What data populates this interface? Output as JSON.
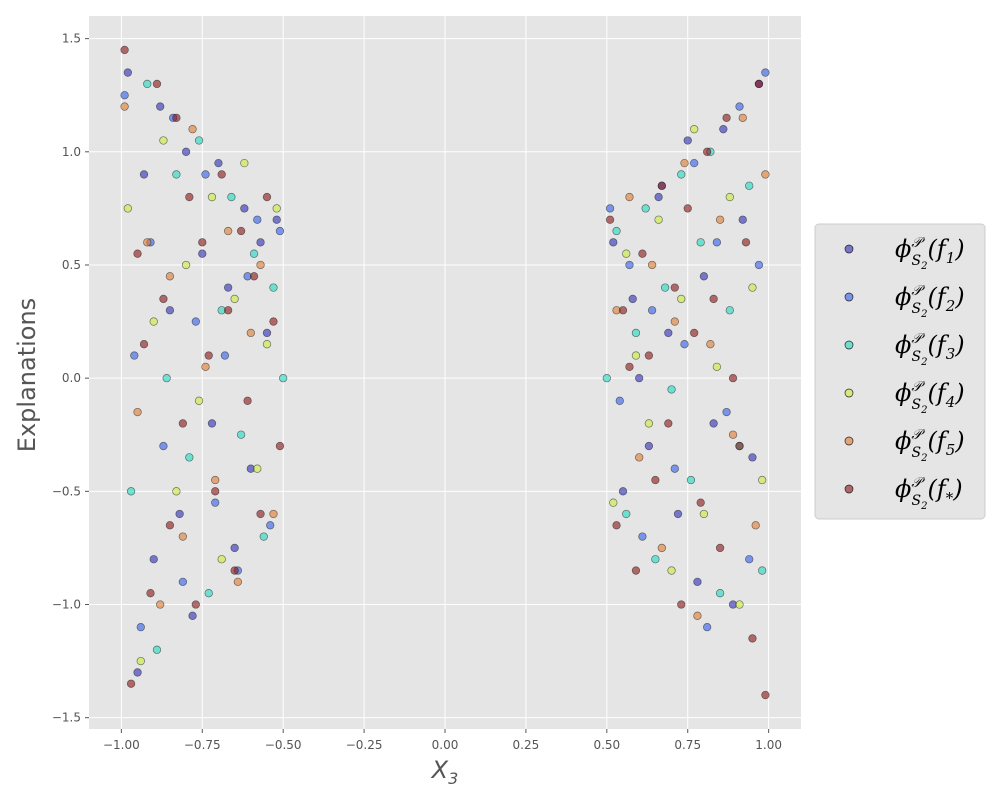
{
  "chart_data": {
    "type": "scatter",
    "xlabel": "X3",
    "ylabel": "Explanations",
    "xlim": [
      -1.1,
      1.1
    ],
    "ylim": [
      -1.55,
      1.6
    ],
    "x_ticks": [
      -1.0,
      -0.75,
      -0.5,
      -0.25,
      0.0,
      0.25,
      0.5,
      0.75,
      1.0
    ],
    "x_tick_labels": [
      "−1.00",
      "−0.75",
      "−0.50",
      "−0.25",
      "0.00",
      "0.25",
      "0.50",
      "0.75",
      "1.00"
    ],
    "y_ticks": [
      -1.5,
      -1.0,
      -0.5,
      0.0,
      0.5,
      1.0,
      1.5
    ],
    "y_tick_labels": [
      "−1.5",
      "−1.0",
      "−0.5",
      "0.0",
      "0.5",
      "1.0",
      "1.5"
    ],
    "grid": true,
    "legend_position": "right",
    "point_density_note": "points lie only for |X3| between 0.5 and 1.0",
    "series": [
      {
        "name": "ϕ^P_{S2}(f1)",
        "color": "#2a2ab8",
        "x": [
          -0.98,
          -0.95,
          -0.93,
          -0.9,
          -0.88,
          -0.85,
          -0.82,
          -0.8,
          -0.78,
          -0.75,
          -0.72,
          -0.7,
          -0.67,
          -0.65,
          -0.62,
          -0.6,
          -0.57,
          -0.55,
          -0.52,
          0.52,
          0.55,
          0.58,
          0.6,
          0.63,
          0.66,
          0.69,
          0.72,
          0.75,
          0.78,
          0.8,
          0.83,
          0.86,
          0.89,
          0.92,
          0.95,
          0.97
        ],
        "y": [
          1.35,
          -1.3,
          0.9,
          -0.8,
          1.2,
          0.3,
          -0.6,
          1.0,
          -1.05,
          0.55,
          -0.2,
          0.95,
          0.4,
          -0.75,
          0.75,
          -0.4,
          0.6,
          0.2,
          0.7,
          0.6,
          -0.5,
          0.35,
          0.0,
          -0.3,
          0.8,
          0.2,
          -0.6,
          1.05,
          -0.9,
          0.45,
          -0.2,
          1.1,
          -1.0,
          0.7,
          -0.35,
          1.3
        ]
      },
      {
        "name": "ϕ^P_{S2}(f2)",
        "color": "#2f5be8",
        "x": [
          -0.99,
          -0.96,
          -0.94,
          -0.91,
          -0.87,
          -0.84,
          -0.81,
          -0.77,
          -0.74,
          -0.71,
          -0.68,
          -0.64,
          -0.61,
          -0.58,
          -0.54,
          -0.51,
          0.51,
          0.54,
          0.57,
          0.61,
          0.64,
          0.67,
          0.71,
          0.74,
          0.77,
          0.81,
          0.84,
          0.87,
          0.91,
          0.94,
          0.97,
          0.99
        ],
        "y": [
          1.25,
          0.1,
          -1.1,
          0.6,
          -0.3,
          1.15,
          -0.9,
          0.25,
          0.9,
          -0.55,
          0.1,
          -0.85,
          0.45,
          0.7,
          -0.65,
          0.65,
          0.75,
          -0.1,
          0.5,
          -0.7,
          0.3,
          0.85,
          -0.4,
          0.15,
          0.95,
          -1.1,
          0.6,
          -0.15,
          1.2,
          -0.8,
          0.5,
          1.35
        ]
      },
      {
        "name": "ϕ^P_{S2}(f3)",
        "color": "#1fd8c0",
        "x": [
          -0.97,
          -0.92,
          -0.89,
          -0.86,
          -0.83,
          -0.79,
          -0.76,
          -0.73,
          -0.69,
          -0.66,
          -0.63,
          -0.59,
          -0.56,
          -0.53,
          -0.5,
          0.5,
          0.53,
          0.56,
          0.59,
          0.62,
          0.65,
          0.68,
          0.7,
          0.73,
          0.76,
          0.79,
          0.82,
          0.85,
          0.88,
          0.91,
          0.94,
          0.98
        ],
        "y": [
          -0.5,
          1.3,
          -1.2,
          0.0,
          0.9,
          -0.35,
          1.05,
          -0.95,
          0.3,
          0.8,
          -0.25,
          0.55,
          -0.7,
          0.4,
          0.0,
          0.0,
          0.65,
          -0.6,
          0.2,
          0.75,
          -0.8,
          0.4,
          -0.05,
          0.9,
          -0.45,
          0.6,
          1.0,
          -0.95,
          0.3,
          -0.3,
          0.85,
          -0.85
        ]
      },
      {
        "name": "ϕ^P_{S2}(f4)",
        "color": "#c8ec38",
        "x": [
          -0.98,
          -0.94,
          -0.9,
          -0.87,
          -0.83,
          -0.8,
          -0.76,
          -0.72,
          -0.69,
          -0.65,
          -0.62,
          -0.58,
          -0.55,
          -0.52,
          0.52,
          0.56,
          0.59,
          0.63,
          0.66,
          0.7,
          0.73,
          0.77,
          0.8,
          0.84,
          0.88,
          0.91,
          0.95,
          0.98
        ],
        "y": [
          0.75,
          -1.25,
          0.25,
          1.05,
          -0.5,
          0.5,
          -0.1,
          0.8,
          -0.8,
          0.35,
          0.95,
          -0.4,
          0.15,
          0.75,
          -0.55,
          0.55,
          0.1,
          -0.2,
          0.7,
          -0.85,
          0.35,
          1.1,
          -0.6,
          0.05,
          0.8,
          -1.0,
          0.4,
          -0.45
        ]
      },
      {
        "name": "ϕ^P_{S2}(f5)",
        "color": "#e07a2e",
        "x": [
          -0.99,
          -0.95,
          -0.92,
          -0.88,
          -0.85,
          -0.81,
          -0.78,
          -0.74,
          -0.71,
          -0.67,
          -0.64,
          -0.6,
          -0.57,
          -0.53,
          0.53,
          0.57,
          0.6,
          0.64,
          0.67,
          0.71,
          0.74,
          0.78,
          0.82,
          0.85,
          0.89,
          0.92,
          0.96,
          0.99
        ],
        "y": [
          1.2,
          -0.15,
          0.6,
          -1.0,
          0.45,
          -0.7,
          1.1,
          0.05,
          -0.45,
          0.65,
          -0.9,
          0.2,
          0.5,
          -0.6,
          0.3,
          0.8,
          -0.35,
          0.5,
          -0.75,
          0.25,
          0.95,
          -1.05,
          0.15,
          0.7,
          -0.25,
          1.15,
          -0.65,
          0.9
        ]
      },
      {
        "name": "ϕ^P_{S2}(f*)",
        "color": "#8b1010",
        "x": [
          -0.99,
          -0.97,
          -0.95,
          -0.93,
          -0.91,
          -0.89,
          -0.87,
          -0.85,
          -0.83,
          -0.81,
          -0.79,
          -0.77,
          -0.75,
          -0.73,
          -0.71,
          -0.69,
          -0.67,
          -0.65,
          -0.63,
          -0.61,
          -0.59,
          -0.57,
          -0.55,
          -0.53,
          -0.51,
          0.51,
          0.53,
          0.55,
          0.57,
          0.59,
          0.61,
          0.63,
          0.65,
          0.67,
          0.69,
          0.71,
          0.73,
          0.75,
          0.77,
          0.79,
          0.81,
          0.83,
          0.85,
          0.87,
          0.89,
          0.91,
          0.93,
          0.95,
          0.97,
          0.99
        ],
        "y": [
          1.45,
          -1.35,
          0.55,
          0.15,
          -0.95,
          1.3,
          0.35,
          -0.65,
          1.15,
          -0.2,
          0.8,
          -1.0,
          0.6,
          0.1,
          -0.5,
          0.9,
          0.3,
          -0.85,
          0.65,
          -0.1,
          0.45,
          -0.6,
          0.8,
          0.25,
          -0.3,
          0.7,
          -0.65,
          0.3,
          0.05,
          -0.85,
          0.55,
          0.1,
          -0.45,
          0.85,
          -0.2,
          0.4,
          -1.0,
          0.75,
          0.2,
          -0.55,
          1.0,
          0.35,
          -0.75,
          1.15,
          0.0,
          -0.3,
          0.6,
          -1.15,
          1.3,
          -1.4
        ]
      }
    ]
  }
}
